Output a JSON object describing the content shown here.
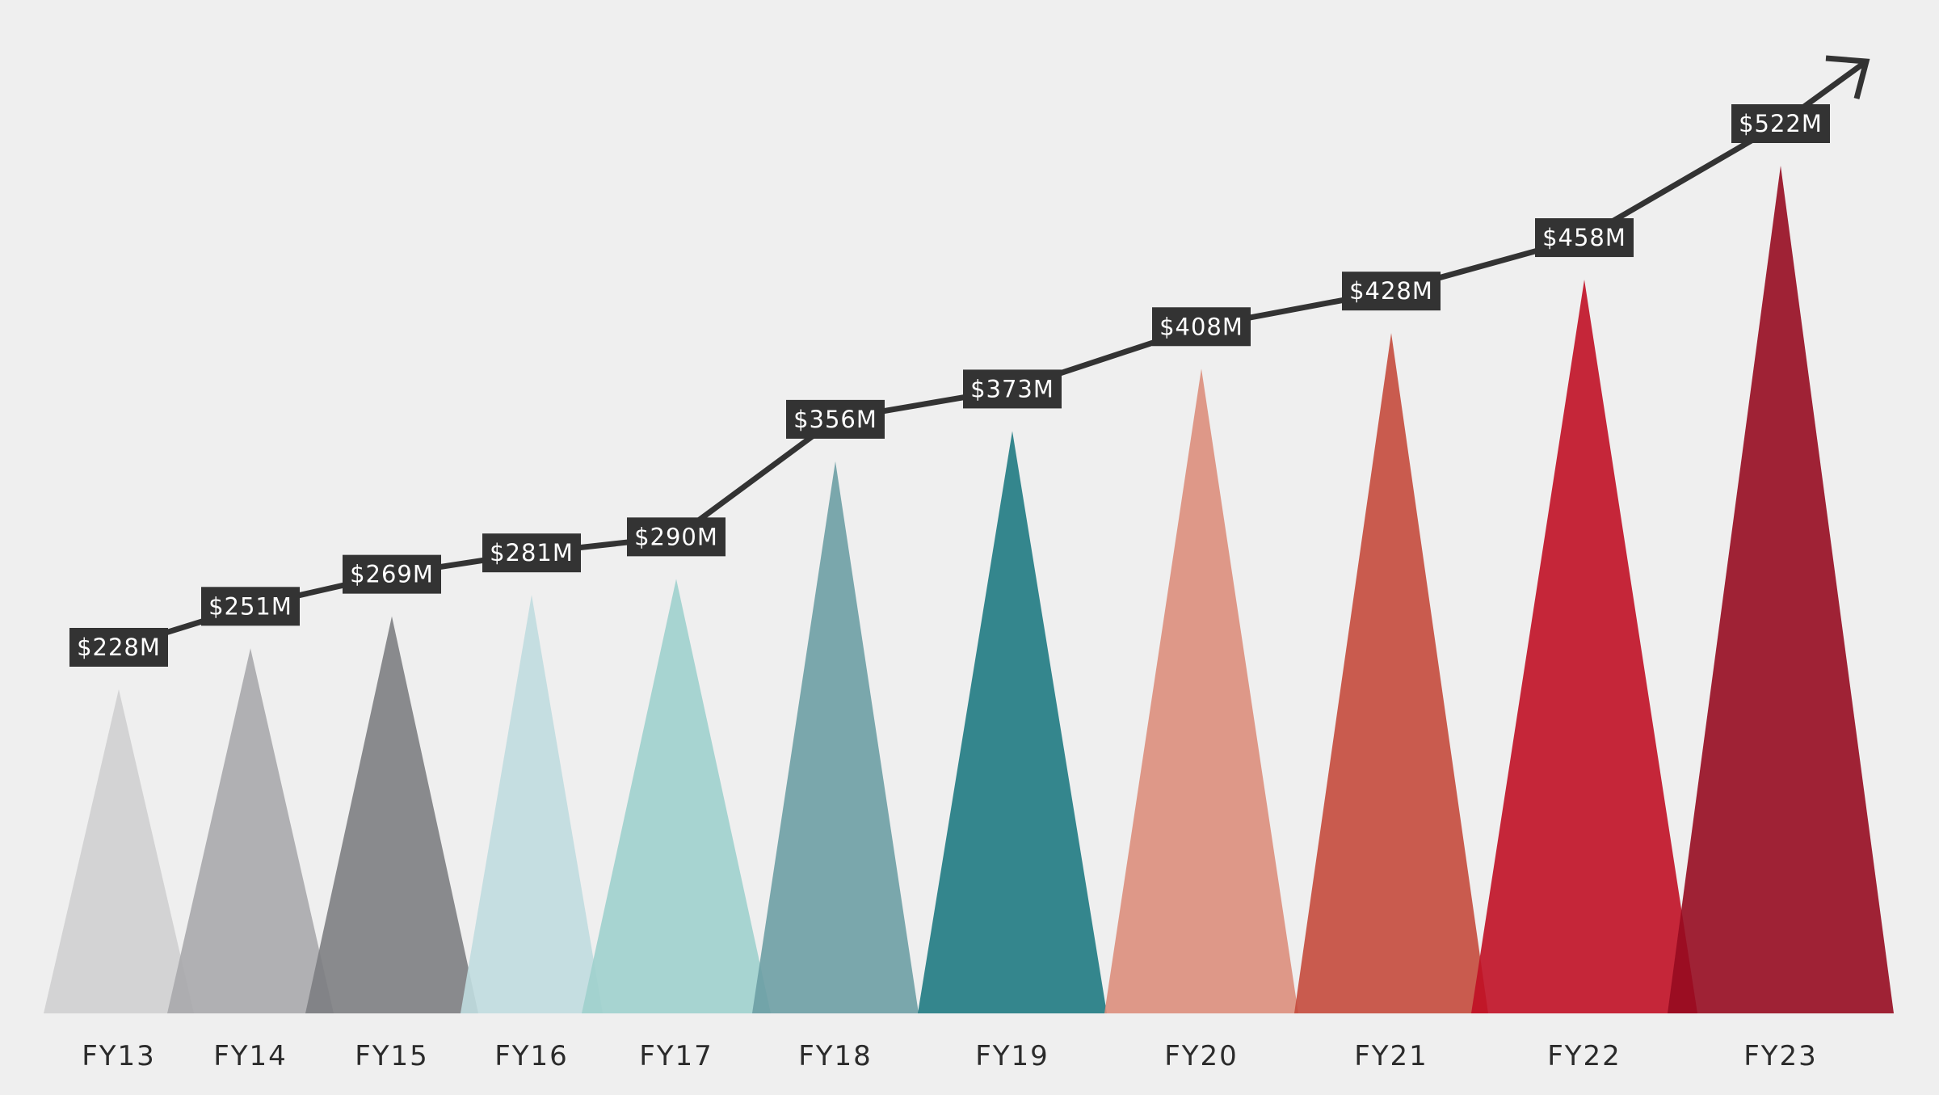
{
  "chart_data": {
    "type": "area",
    "categories": [
      "FY13",
      "FY14",
      "FY15",
      "FY16",
      "FY17",
      "FY18",
      "FY19",
      "FY20",
      "FY21",
      "FY22",
      "FY23"
    ],
    "values": [
      228,
      251,
      269,
      281,
      290,
      356,
      373,
      408,
      428,
      458,
      522
    ],
    "data_labels": [
      "$228M",
      "$251M",
      "$269M",
      "$281M",
      "$290M",
      "$356M",
      "$373M",
      "$408M",
      "$428M",
      "$458M",
      "$522M"
    ],
    "colors": [
      "#cfcfd0",
      "#a8a9ac",
      "#7d7e82",
      "#c0dcdf",
      "#9fd0cd",
      "#6d9ea4",
      "#1f7a82",
      "#db8e7c",
      "#c44a3c",
      "#c00f25",
      "#960b20"
    ],
    "trend_line": true,
    "trend_arrow": true,
    "label_box_color": "#333333",
    "grid": false,
    "legend": "none"
  }
}
